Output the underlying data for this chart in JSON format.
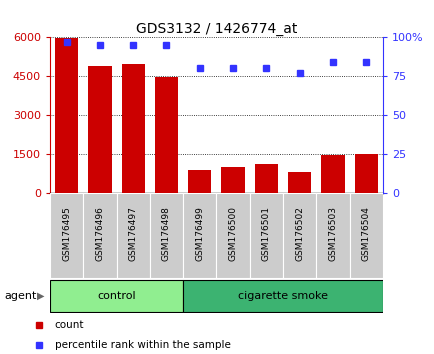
{
  "title": "GDS3132 / 1426774_at",
  "samples": [
    "GSM176495",
    "GSM176496",
    "GSM176497",
    "GSM176498",
    "GSM176499",
    "GSM176500",
    "GSM176501",
    "GSM176502",
    "GSM176503",
    "GSM176504"
  ],
  "counts": [
    5950,
    4880,
    4950,
    4450,
    900,
    980,
    1100,
    820,
    1480,
    1500
  ],
  "percentile": [
    97,
    95,
    95,
    95,
    80,
    80,
    80,
    77,
    84,
    84
  ],
  "groups": [
    {
      "label": "control",
      "start": 0,
      "end": 4,
      "color": "#90EE90"
    },
    {
      "label": "cigarette smoke",
      "start": 4,
      "end": 10,
      "color": "#3CB371"
    }
  ],
  "bar_color": "#CC0000",
  "dot_color": "#3333FF",
  "left_axis_color": "#CC0000",
  "right_axis_color": "#3333FF",
  "ylim_left": [
    0,
    6000
  ],
  "ylim_right": [
    0,
    100
  ],
  "left_yticks": [
    0,
    1500,
    3000,
    4500,
    6000
  ],
  "right_yticks": [
    0,
    25,
    50,
    75,
    100
  ],
  "right_yticklabels": [
    "0",
    "25",
    "50",
    "75",
    "100%"
  ],
  "bg_color": "#ffffff",
  "tick_label_area_color": "#cccccc",
  "border_color": "#000000",
  "agent_label": "agent",
  "legend_items": [
    {
      "color": "#CC0000",
      "label": "count"
    },
    {
      "color": "#3333FF",
      "label": "percentile rank within the sample"
    }
  ]
}
